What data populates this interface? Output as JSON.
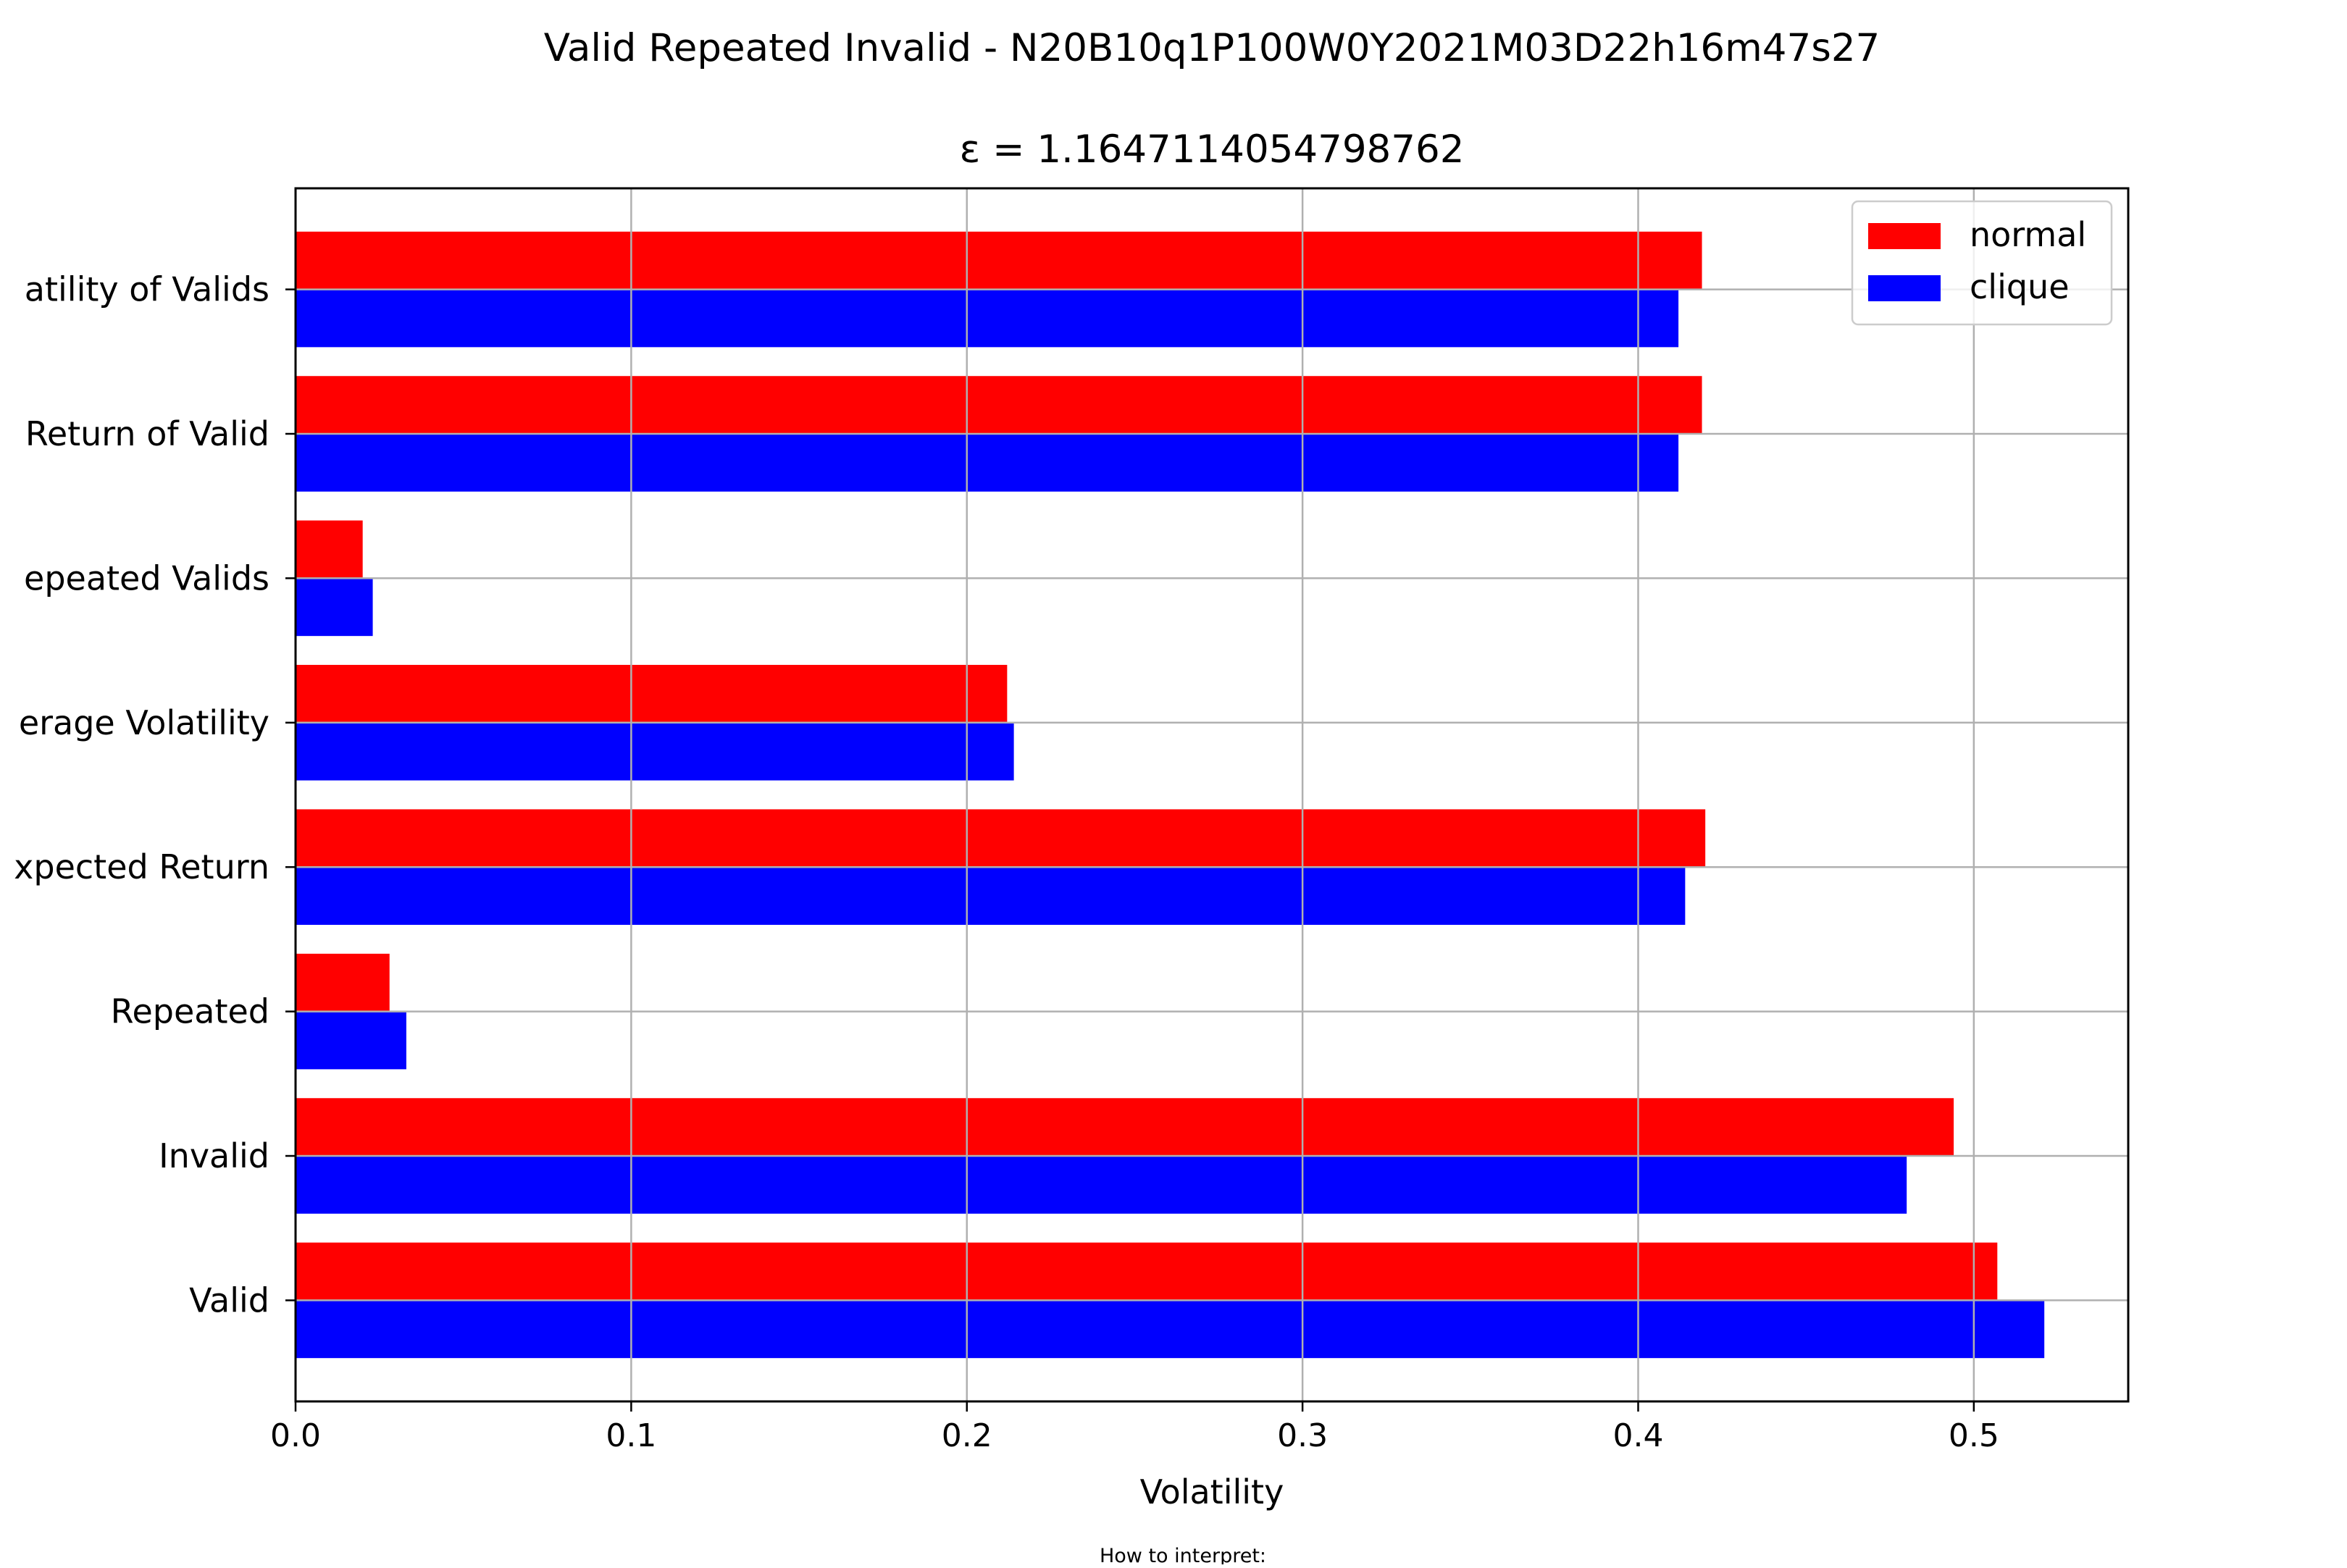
{
  "chart_data": {
    "type": "bar",
    "orientation": "horizontal",
    "title": "Valid Repeated Invalid - N20B10q1P100W0Y2021M03D22h16m47s27",
    "subtitle": "ε = 1.1647114054798762",
    "xlabel": "Volatility",
    "ylabel": "",
    "footnote": "How to interpret:",
    "xlim": [
      0,
      0.546
    ],
    "xticks": [
      0.0,
      0.1,
      0.2,
      0.3,
      0.4,
      0.5
    ],
    "xtick_labels": [
      "0.0",
      "0.1",
      "0.2",
      "0.3",
      "0.4",
      "0.5"
    ],
    "grid": true,
    "legend_position": "top-right",
    "categories": [
      "Valid",
      "Invalid",
      "Repeated",
      "Expected Return",
      "Average Volatility",
      "Repeated Valids",
      "Expected Return of Valid",
      "Volatility of Valids"
    ],
    "category_labels_visible": [
      "Valid",
      "Invalid",
      "Repeated",
      "xpected Return",
      "erage Volatility",
      "epeated Valids",
      "Return of Valid",
      "atility of Valids"
    ],
    "series": [
      {
        "name": "normal",
        "color": "#ff0000",
        "values": [
          0.507,
          0.494,
          0.028,
          0.42,
          0.212,
          0.02,
          0.419,
          0.419
        ]
      },
      {
        "name": "clique",
        "color": "#0000ff",
        "values": [
          0.521,
          0.48,
          0.033,
          0.414,
          0.214,
          0.023,
          0.412,
          0.412
        ]
      }
    ]
  }
}
